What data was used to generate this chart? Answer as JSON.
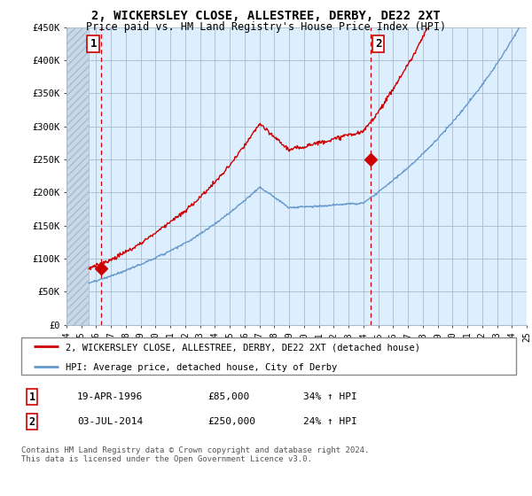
{
  "title": "2, WICKERSLEY CLOSE, ALLESTREE, DERBY, DE22 2XT",
  "subtitle": "Price paid vs. HM Land Registry's House Price Index (HPI)",
  "ylim": [
    0,
    450000
  ],
  "yticks": [
    0,
    50000,
    100000,
    150000,
    200000,
    250000,
    300000,
    350000,
    400000,
    450000
  ],
  "ytick_labels": [
    "£0",
    "£50K",
    "£100K",
    "£150K",
    "£200K",
    "£250K",
    "£300K",
    "£350K",
    "£400K",
    "£450K"
  ],
  "red_line_color": "#cc0000",
  "blue_line_color": "#6699cc",
  "plot_bg_color": "#ddeeff",
  "sale1_x": 1996.3,
  "sale1_price": 85000,
  "sale2_x": 2014.5,
  "sale2_price": 250000,
  "legend_entries": [
    "2, WICKERSLEY CLOSE, ALLESTREE, DERBY, DE22 2XT (detached house)",
    "HPI: Average price, detached house, City of Derby"
  ],
  "table_rows": [
    [
      "1",
      "19-APR-1996",
      "£85,000",
      "34% ↑ HPI"
    ],
    [
      "2",
      "03-JUL-2014",
      "£250,000",
      "24% ↑ HPI"
    ]
  ],
  "footnote": "Contains HM Land Registry data © Crown copyright and database right 2024.\nThis data is licensed under the Open Government Licence v3.0.",
  "xmin": 1994,
  "xmax": 2025,
  "hatch_end": 1995.5,
  "data_end": 2024.8,
  "grid_color": "#aabbcc"
}
